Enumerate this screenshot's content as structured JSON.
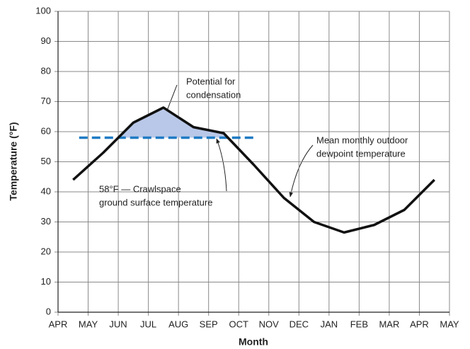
{
  "chart_data": {
    "type": "line",
    "x": [
      0.5,
      1.5,
      2.5,
      3.5,
      4.5,
      5.5,
      6.5,
      7.5,
      8.5,
      9.5,
      10.5,
      11.5,
      12.5
    ],
    "values": [
      44,
      53,
      63,
      68,
      61.5,
      59.5,
      49,
      38,
      30,
      26.5,
      29,
      34,
      44
    ],
    "color": "#111111",
    "xlim": [
      0,
      13
    ],
    "xticks": [
      {
        "value": 0,
        "label": "APR"
      },
      {
        "value": 1,
        "label": "MAY"
      },
      {
        "value": 2,
        "label": "JUN"
      },
      {
        "value": 3,
        "label": "JUL"
      },
      {
        "value": 4,
        "label": "AUG"
      },
      {
        "value": 5,
        "label": "SEP"
      },
      {
        "value": 6,
        "label": "OCT"
      },
      {
        "value": 7,
        "label": "NOV"
      },
      {
        "value": 8,
        "label": "DEC"
      },
      {
        "value": 9,
        "label": "JAN"
      },
      {
        "value": 10,
        "label": "FEB"
      },
      {
        "value": 11,
        "label": "MAR"
      },
      {
        "value": 12,
        "label": "APR"
      },
      {
        "value": 13,
        "label": "MAY"
      }
    ],
    "ylim": [
      0,
      100
    ],
    "yticks": [
      0,
      10,
      20,
      30,
      40,
      50,
      60,
      70,
      80,
      90,
      100
    ],
    "grid": true,
    "xlabel": "Month",
    "ylabel": "Temperature (°F)",
    "reference_line": {
      "value": 58,
      "x": [
        0.7,
        6.5
      ],
      "color": "#1f7bc4"
    },
    "shade_color": "#b9c8e8",
    "annotations": [
      {
        "lines": [
          "Potential for",
          "condensation"
        ]
      },
      {
        "lines": [
          "Mean monthly outdoor",
          "dewpoint temperature"
        ]
      },
      {
        "lines": [
          "58°F — Crawlspace",
          "ground surface temperature"
        ]
      }
    ]
  }
}
